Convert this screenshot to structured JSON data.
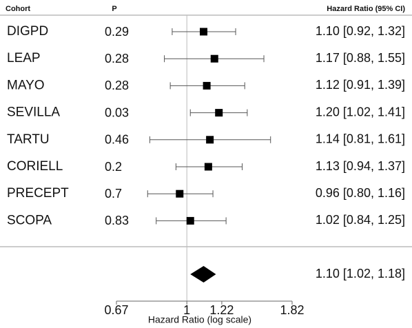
{
  "chart_data": {
    "type": "forest",
    "headers": {
      "cohort": "Cohort",
      "p": "P",
      "estimate": "Hazard Ratio (95% CI)"
    },
    "categories": [
      "DIGPD",
      "LEAP",
      "MAYO",
      "SEVILLA",
      "TARTU",
      "CORIELL",
      "PRECEPT",
      "SCOPA"
    ],
    "p_values": [
      0.29,
      0.28,
      0.28,
      0.03,
      0.46,
      0.2,
      0.7,
      0.83
    ],
    "values": [
      1.1,
      1.17,
      1.12,
      1.2,
      1.14,
      1.13,
      0.96,
      1.02
    ],
    "lower": [
      0.92,
      0.88,
      0.91,
      1.02,
      0.81,
      0.94,
      0.8,
      0.84
    ],
    "upper": [
      1.32,
      1.55,
      1.39,
      1.41,
      1.61,
      1.37,
      1.16,
      1.25
    ],
    "value_labels": [
      "1.10 [0.92, 1.32]",
      "1.17 [0.88, 1.55]",
      "1.12 [0.91, 1.39]",
      "1.20 [1.02, 1.41]",
      "1.14 [0.81, 1.61]",
      "1.13 [0.94, 1.37]",
      "0.96 [0.80, 1.16]",
      "1.02 [0.84, 1.25]"
    ],
    "summary": {
      "value": 1.1,
      "lower": 1.02,
      "upper": 1.18,
      "label": "1.10 [1.02, 1.18]"
    },
    "xlabel": "Hazard Ratio (log scale)",
    "xlim": [
      0.67,
      1.82
    ],
    "xticks": [
      0.67,
      1,
      1.22,
      1.82
    ],
    "log_x": true,
    "reference": 1,
    "color": "#000000"
  }
}
